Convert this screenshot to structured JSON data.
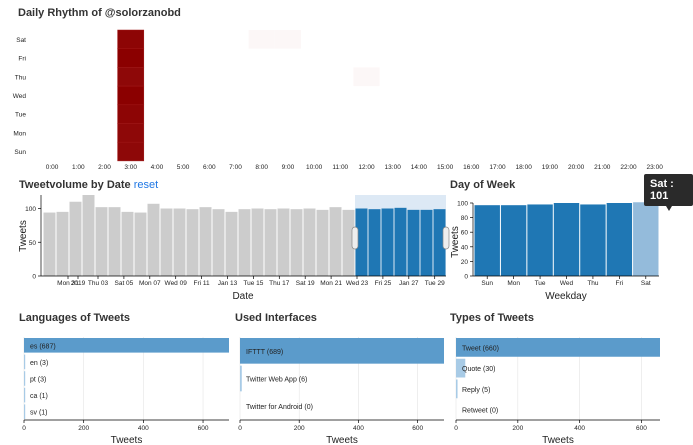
{
  "titles": {
    "heatmap": "Daily Rhythm of @solorzanobd",
    "volume": "Tweetvolume by Date",
    "volume_reset": "reset",
    "weekday": "Day of Week",
    "languages": "Languages of Tweets",
    "interfaces": "Used Interfaces",
    "types": "Types of Tweets"
  },
  "colors": {
    "heat_max": "#8b0000",
    "bar_gray": "#cccccc",
    "bar_blue": "#1f77b4",
    "bar_highlight": "#94bbdb",
    "brush": "#dde9f5",
    "hbar": "#5b9bcb",
    "hbar_light": "#a8cbe6"
  },
  "tooltip": {
    "text": "Sat : 101"
  },
  "chart_data": [
    {
      "type": "heatmap",
      "title": "Daily Rhythm of @solorzanobd",
      "x_categories": [
        "0:00",
        "1:00",
        "2:00",
        "3:00",
        "4:00",
        "5:00",
        "6:00",
        "7:00",
        "8:00",
        "9:00",
        "10:00",
        "11:00",
        "12:00",
        "13:00",
        "14:00",
        "15:00",
        "16:00",
        "17:00",
        "18:00",
        "19:00",
        "20:00",
        "21:00",
        "22:00",
        "23:00"
      ],
      "y_categories": [
        "Sat",
        "Fri",
        "Thu",
        "Wed",
        "Tue",
        "Mon",
        "Sun"
      ],
      "cells": [
        {
          "day": "Sat",
          "hour": "3:00",
          "value": 98
        },
        {
          "day": "Fri",
          "hour": "3:00",
          "value": 100
        },
        {
          "day": "Thu",
          "hour": "3:00",
          "value": 97
        },
        {
          "day": "Wed",
          "hour": "3:00",
          "value": 100
        },
        {
          "day": "Tue",
          "hour": "3:00",
          "value": 98
        },
        {
          "day": "Mon",
          "hour": "3:00",
          "value": 97
        },
        {
          "day": "Sun",
          "hour": "3:00",
          "value": 97
        },
        {
          "day": "Sat",
          "hour": "8:00",
          "value": 1
        },
        {
          "day": "Sat",
          "hour": "9:00",
          "value": 2
        },
        {
          "day": "Thu",
          "hour": "12:00",
          "value": 1
        }
      ]
    },
    {
      "type": "bar",
      "title": "Tweetvolume by Date",
      "xlabel": "Date",
      "ylabel": "Tweets",
      "ylim": [
        0,
        120
      ],
      "yticks": [
        0,
        50,
        100
      ],
      "x_tick_labels": [
        "Mon 31",
        "2019",
        "Thu 03",
        "Sat 05",
        "Mon 07",
        "Wed 09",
        "Fri 11",
        "Jan 13",
        "Tue 15",
        "Thu 17",
        "Sat 19",
        "Mon 21",
        "Wed 23",
        "Fri 25",
        "Jan 27",
        "Tue 29"
      ],
      "values": [
        94,
        95,
        110,
        120,
        102,
        102,
        95,
        94,
        107,
        100,
        100,
        99,
        102,
        99,
        95,
        99,
        100,
        99,
        100,
        99,
        100,
        98,
        102,
        98,
        100,
        99,
        100,
        101,
        98,
        98,
        99
      ],
      "selected_from_index": 24,
      "brush": "selected range Wed 23 - Tue 29"
    },
    {
      "type": "bar",
      "title": "Day of Week",
      "xlabel": "Weekday",
      "ylabel": "Tweets",
      "ylim": [
        0,
        100
      ],
      "yticks": [
        0,
        20,
        40,
        60,
        80,
        100
      ],
      "categories": [
        "Sun",
        "Mon",
        "Tue",
        "Wed",
        "Thu",
        "Fri",
        "Sat"
      ],
      "values": [
        97,
        97,
        98,
        100,
        98,
        100,
        101
      ],
      "highlighted": "Sat"
    },
    {
      "type": "bar",
      "orientation": "horizontal",
      "title": "Languages of Tweets",
      "xlabel": "Tweets",
      "xlim": [
        0,
        687
      ],
      "xticks": [
        0,
        200,
        400,
        600
      ],
      "categories": [
        "es",
        "en",
        "pt",
        "ca",
        "sv"
      ],
      "values": [
        687,
        3,
        3,
        1,
        1
      ]
    },
    {
      "type": "bar",
      "orientation": "horizontal",
      "title": "Used Interfaces",
      "xlabel": "Tweets",
      "xlim": [
        0,
        689
      ],
      "xticks": [
        0,
        200,
        400,
        600
      ],
      "categories": [
        "IFTTT",
        "Twitter Web App",
        "Twitter for Android"
      ],
      "values": [
        689,
        6,
        0
      ]
    },
    {
      "type": "bar",
      "orientation": "horizontal",
      "title": "Types of Tweets",
      "xlabel": "Tweets",
      "xlim": [
        0,
        660
      ],
      "xticks": [
        0,
        200,
        400,
        600
      ],
      "categories": [
        "Tweet",
        "Quote",
        "Reply",
        "Retweet"
      ],
      "values": [
        660,
        30,
        5,
        0
      ]
    }
  ]
}
